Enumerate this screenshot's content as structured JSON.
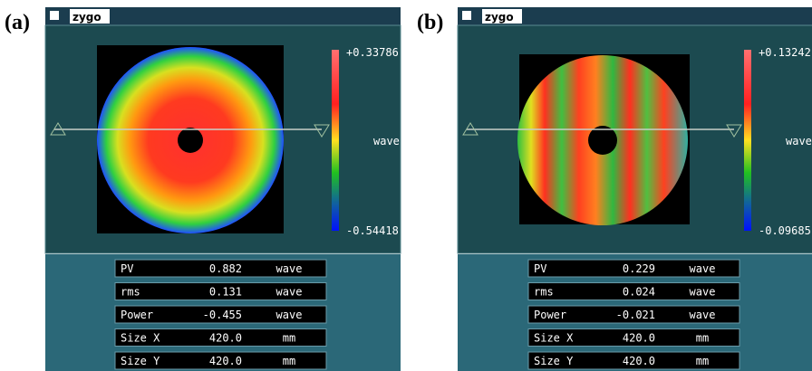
{
  "panels": [
    {
      "label": "(a)",
      "title": "zygo",
      "scale_max": "+0.33786",
      "scale_min": "-0.54418",
      "scale_unit": "wave",
      "rows": [
        [
          "PV",
          "0.882",
          "wave"
        ],
        [
          "rms",
          "0.131",
          "wave"
        ],
        [
          "Power",
          "-0.455",
          "wave"
        ],
        [
          "Size X",
          "420.0",
          "mm"
        ],
        [
          "Size Y",
          "420.0",
          "mm"
        ]
      ]
    },
    {
      "label": "(b)",
      "title": "zygo",
      "scale_max": "+0.13242",
      "scale_min": "-0.09685",
      "scale_unit": "wave",
      "rows": [
        [
          "PV",
          "0.229",
          "wave"
        ],
        [
          "rms",
          "0.024",
          "wave"
        ],
        [
          "Power",
          "-0.021",
          "wave"
        ],
        [
          "Size X",
          "420.0",
          "mm"
        ],
        [
          "Size Y",
          "420.0",
          "mm"
        ]
      ]
    }
  ]
}
